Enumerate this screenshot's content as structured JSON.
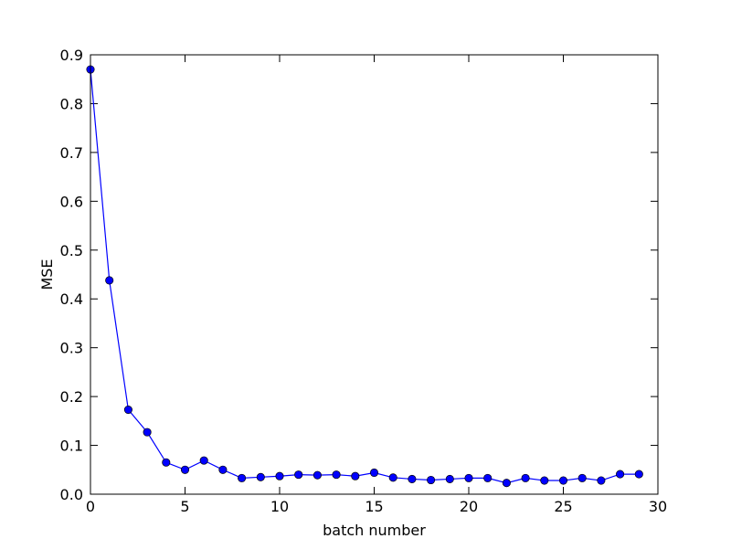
{
  "chart_data": {
    "type": "line",
    "title": "",
    "xlabel": "batch number",
    "ylabel": "MSE",
    "xlim": [
      0,
      30
    ],
    "ylim": [
      0,
      0.9
    ],
    "xticks": [
      0,
      5,
      10,
      15,
      20,
      25,
      30
    ],
    "yticks": [
      0.0,
      0.1,
      0.2,
      0.3,
      0.4,
      0.5,
      0.6,
      0.7,
      0.8,
      0.9
    ],
    "grid": false,
    "marker": "circle",
    "series": [
      {
        "color": "#0000ff",
        "x": [
          0,
          1,
          2,
          3,
          4,
          5,
          6,
          7,
          8,
          9,
          10,
          11,
          12,
          13,
          14,
          15,
          16,
          17,
          18,
          19,
          20,
          21,
          22,
          23,
          24,
          25,
          26,
          27,
          28,
          29
        ],
        "y": [
          0.87,
          0.438,
          0.173,
          0.127,
          0.065,
          0.05,
          0.069,
          0.05,
          0.033,
          0.035,
          0.037,
          0.04,
          0.039,
          0.04,
          0.037,
          0.044,
          0.034,
          0.031,
          0.029,
          0.031,
          0.033,
          0.033,
          0.023,
          0.033,
          0.028,
          0.028,
          0.033,
          0.028,
          0.041,
          0.041
        ]
      }
    ]
  }
}
